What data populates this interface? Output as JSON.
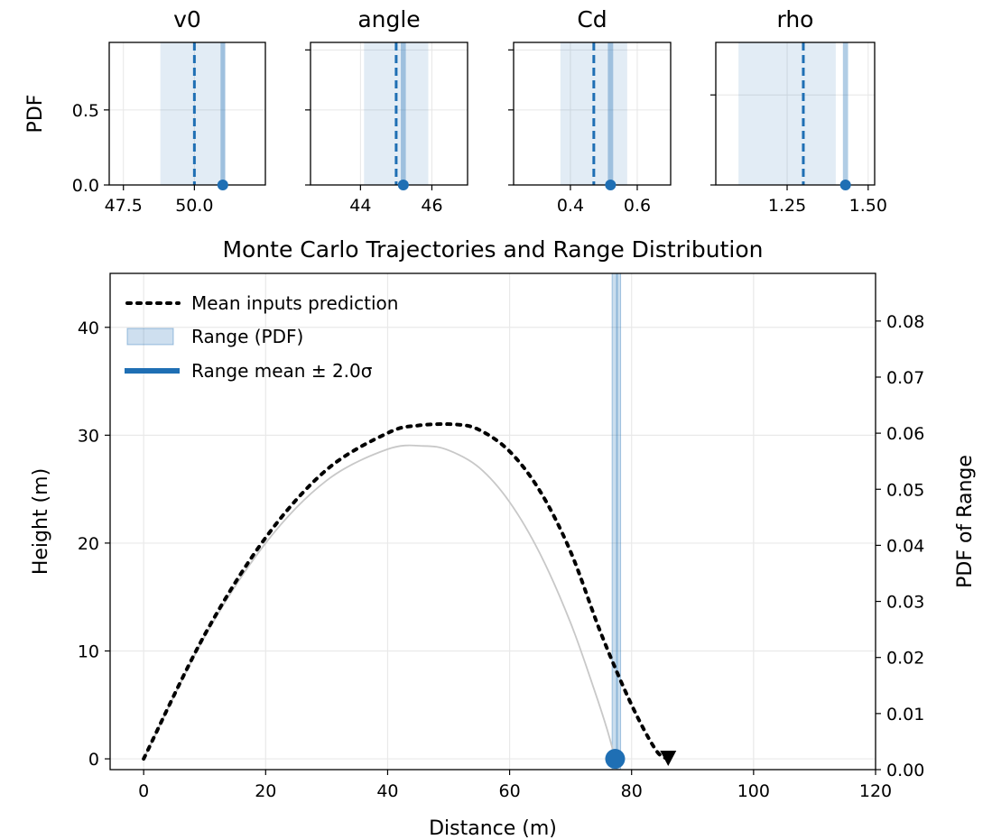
{
  "chart_data": [
    {
      "type": "line",
      "title": "v0",
      "ylabel": "PDF",
      "xlim": [
        47.0,
        52.5
      ],
      "ylim": [
        0,
        0.95
      ],
      "xticks": [
        47.5,
        50.0
      ],
      "xtick_labels": [
        "47.5",
        "50.0"
      ],
      "yticks": [
        0.0,
        0.5
      ],
      "ytick_labels": [
        "0.0",
        "0.5"
      ],
      "grid": true,
      "band": [
        48.8,
        51.1
      ],
      "mean": 50.0,
      "sample": 51.0,
      "sample_band": [
        50.92,
        51.08
      ]
    },
    {
      "type": "line",
      "title": "angle",
      "xlim": [
        42.6,
        47.0
      ],
      "ylim": [
        0,
        0.95
      ],
      "xticks": [
        44,
        46
      ],
      "xtick_labels": [
        "44",
        "46"
      ],
      "yticks": [
        0.0,
        0.5,
        0.9
      ],
      "ytick_labels": [
        "",
        "",
        ""
      ],
      "grid": true,
      "band": [
        44.1,
        45.9
      ],
      "mean": 45.0,
      "sample": 45.2,
      "sample_band": [
        45.13,
        45.27
      ]
    },
    {
      "type": "line",
      "title": "Cd",
      "xlim": [
        0.23,
        0.7
      ],
      "ylim": [
        0,
        0.95
      ],
      "xticks": [
        0.4,
        0.6
      ],
      "xtick_labels": [
        "0.4",
        "0.6"
      ],
      "yticks": [
        0.0,
        0.5,
        0.9
      ],
      "ytick_labels": [
        "",
        "",
        ""
      ],
      "grid": true,
      "band": [
        0.37,
        0.57
      ],
      "mean": 0.47,
      "sample": 0.52,
      "sample_band": [
        0.512,
        0.528
      ]
    },
    {
      "type": "line",
      "title": "rho",
      "xlim": [
        1.03,
        1.52
      ],
      "ylim": [
        0,
        0.95
      ],
      "xticks": [
        1.25,
        1.5
      ],
      "xtick_labels": [
        "1.25",
        "1.50"
      ],
      "yticks": [
        0.0,
        0.6
      ],
      "ytick_labels": [
        "",
        ""
      ],
      "grid": true,
      "band": [
        1.1,
        1.4
      ],
      "mean": 1.3,
      "sample": 1.43,
      "sample_band": [
        1.422,
        1.438
      ]
    },
    {
      "type": "line",
      "title": "Monte Carlo Trajectories and Range Distribution",
      "xlabel": "Distance (m)",
      "ylabel": "Height (m)",
      "y2label": "PDF of Range",
      "xlim": [
        -5.5,
        120
      ],
      "ylim": [
        -1,
        45
      ],
      "y2lim": [
        0,
        0.0885
      ],
      "xticks": [
        0,
        20,
        40,
        60,
        80,
        100,
        120
      ],
      "yticks": [
        0,
        10,
        20,
        30,
        40
      ],
      "y2ticks": [
        0.0,
        0.01,
        0.02,
        0.03,
        0.04,
        0.05,
        0.06,
        0.07,
        0.08
      ],
      "y2tick_labels": [
        "0.00",
        "0.01",
        "0.02",
        "0.03",
        "0.04",
        "0.05",
        "0.06",
        "0.07",
        "0.08"
      ],
      "grid": true,
      "legend_position": "top-left",
      "legend": [
        {
          "label": "Mean inputs prediction",
          "style": "dotted",
          "color": "#000000"
        },
        {
          "label": "Range (PDF)",
          "style": "patch",
          "color": "#1f6fb4"
        },
        {
          "label": "Range mean ± 2.0σ",
          "style": "thick",
          "color": "#1f6fb4"
        }
      ],
      "series": [
        {
          "name": "Mean inputs prediction",
          "style": "dotted",
          "color": "#000000",
          "x": [
            0,
            10,
            20,
            30,
            40,
            45,
            51,
            55,
            60,
            65,
            70,
            75,
            80,
            84,
            86
          ],
          "y": [
            0,
            11.5,
            20.5,
            26.8,
            30.2,
            30.9,
            31.0,
            30.5,
            28.5,
            24.8,
            19.2,
            11.6,
            5.0,
            0.8,
            0
          ]
        },
        {
          "name": "",
          "style": "solid",
          "color": "#c8c8c8",
          "x": [
            0,
            10,
            20,
            30,
            40,
            46,
            50,
            55,
            60,
            65,
            70,
            74,
            76,
            77.3
          ],
          "y": [
            0,
            11.3,
            20.0,
            25.8,
            28.7,
            29.0,
            28.6,
            27.0,
            23.8,
            19.0,
            12.6,
            6.2,
            2.7,
            0
          ]
        }
      ],
      "range_band": [
        76.8,
        78.2
      ],
      "range_line": 77.6,
      "range_mean_marker": {
        "x": 77.3,
        "y": 0
      },
      "mean_landing_marker": {
        "x": 86.0,
        "y": 0
      }
    }
  ]
}
